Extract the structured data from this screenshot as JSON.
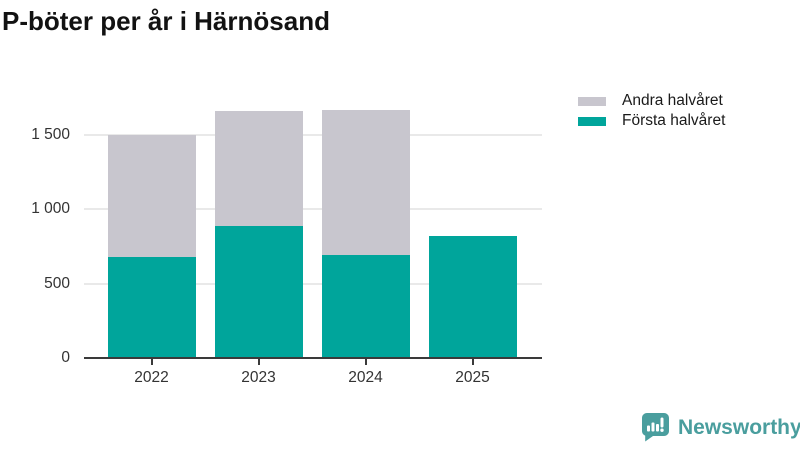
{
  "chart_data": {
    "type": "bar",
    "stacked": true,
    "title": "P-böter per år i Härnösand",
    "categories": [
      "2022",
      "2023",
      "2024",
      "2025"
    ],
    "series": [
      {
        "name": "Första halvåret",
        "color": "#00a59b",
        "values": [
          680,
          890,
          695,
          820
        ]
      },
      {
        "name": "Andra halvåret",
        "color": "#c8c6ce",
        "values": [
          820,
          770,
          975,
          0
        ]
      }
    ],
    "totals": [
      1500,
      1660,
      1670,
      820
    ],
    "xlabel": "",
    "ylabel": "",
    "ylim": [
      0,
      1750
    ],
    "yticks": [
      {
        "value": 0,
        "label": "0"
      },
      {
        "value": 500,
        "label": "500"
      },
      {
        "value": 1000,
        "label": "1 000"
      },
      {
        "value": 1500,
        "label": "1 500"
      }
    ],
    "grid": true,
    "legend_position": "top-right"
  },
  "legend": {
    "items": [
      {
        "label": "Andra halvåret",
        "color": "#c8c6ce"
      },
      {
        "label": "Första halvåret",
        "color": "#00a59b"
      }
    ]
  },
  "footer": {
    "brand": "Newsworthy",
    "brand_color": "#4a9e9e"
  },
  "colors": {
    "first_half": "#00a59b",
    "second_half": "#c8c6ce",
    "axis": "#3a3a3a",
    "gridline": "#e9e9e9"
  }
}
